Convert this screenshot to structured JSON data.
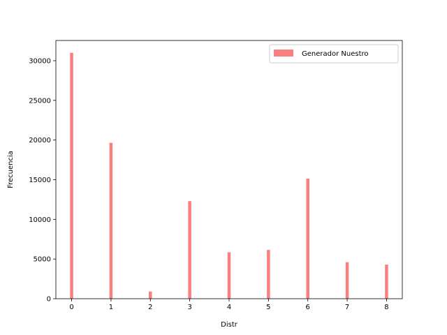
{
  "chart_data": {
    "type": "bar",
    "title": "",
    "xlabel": "Distr",
    "ylabel": "Frecuencia",
    "xlim": [
      -0.4,
      8.4
    ],
    "ylim": [
      0,
      32550
    ],
    "x_ticks": [
      0,
      1,
      2,
      3,
      4,
      5,
      6,
      7,
      8
    ],
    "y_ticks": [
      0,
      5000,
      10000,
      15000,
      20000,
      25000,
      30000
    ],
    "bar_width": 0.08,
    "grid": false,
    "legend_position": "top-right",
    "series": [
      {
        "name": "Generador Nuestro",
        "color": "#fa7f7f",
        "x": [
          0,
          1,
          2,
          3,
          4,
          5,
          6,
          7,
          8
        ],
        "values": [
          31000,
          19650,
          900,
          12300,
          5850,
          6150,
          15150,
          4600,
          4300
        ]
      }
    ]
  }
}
